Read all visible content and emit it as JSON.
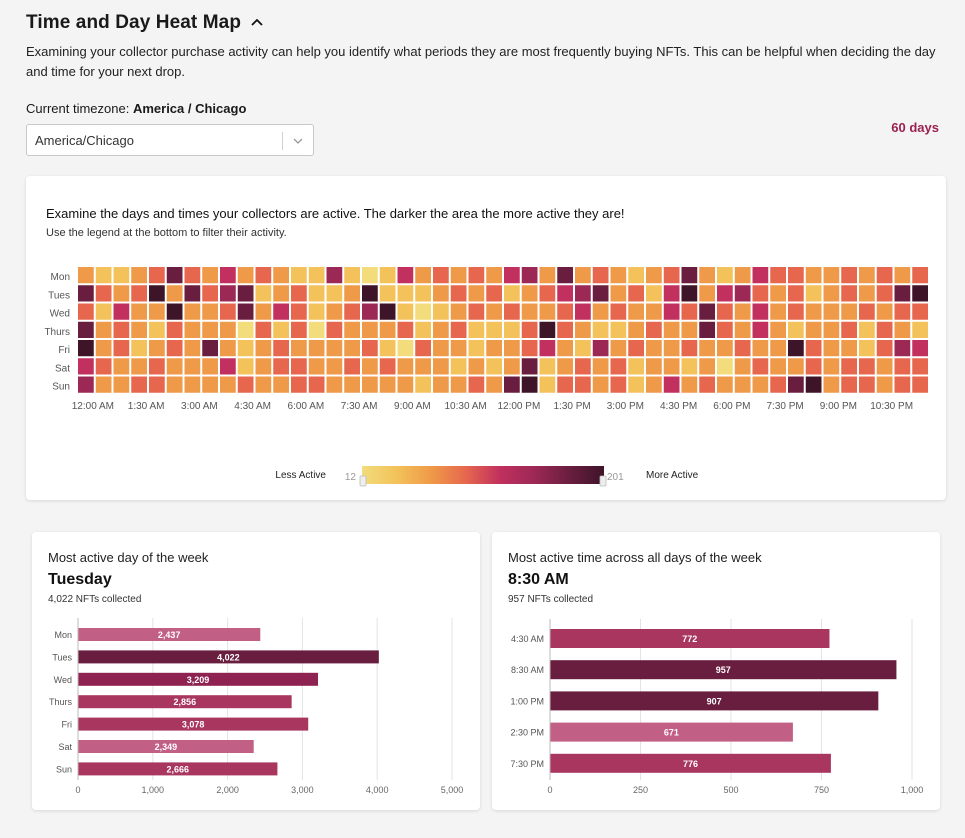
{
  "header": {
    "title": "Time and Day Heat Map",
    "description": "Examining your collector purchase activity can help you identify what periods they are most frequently buying NFTs. This can be helpful when deciding the day and time for your next drop.",
    "timezone_label": "Current timezone:",
    "timezone_value": "America / Chicago",
    "timezone_select": "America/Chicago",
    "period": "60 days",
    "collapse_icon": "chevron-up-icon"
  },
  "colors": {
    "accent": "#9b2050",
    "scale": [
      "#f2dc7c",
      "#f3c25a",
      "#ef9a48",
      "#e6674e",
      "#c1305e",
      "#9c2855",
      "#6a1e3f",
      "#3e1429"
    ]
  },
  "heatmap": {
    "title": "Examine the days and times your collectors are active. The darker the area the more active they are!",
    "subtitle": "Use the legend at the bottom to filter their activity.",
    "legend_less": "Less Active",
    "legend_more": "More Active",
    "legend_min": "12",
    "legend_max": "201"
  },
  "chart_data": [
    {
      "type": "heatmap",
      "title": "",
      "rows": [
        "Mon",
        "Tues",
        "Wed",
        "Thurs",
        "Fri",
        "Sat",
        "Sun"
      ],
      "x_tick_labels": [
        "12:00 AM",
        "1:30 AM",
        "3:00 AM",
        "4:30 AM",
        "6:00 AM",
        "7:30 AM",
        "9:00 AM",
        "10:30 AM",
        "12:00 PM",
        "1:30 PM",
        "3:00 PM",
        "4:30 PM",
        "6:00 PM",
        "7:30 PM",
        "9:00 PM",
        "10:30 PM"
      ],
      "columns": 48,
      "range": [
        12,
        201
      ],
      "levels": [
        [
          2,
          1,
          1,
          2,
          3,
          6,
          3,
          2,
          4,
          2,
          3,
          2,
          1,
          1,
          5,
          1,
          0,
          1,
          4,
          2,
          3,
          2,
          3,
          2,
          4,
          5,
          2,
          6,
          2,
          3,
          2,
          1,
          2,
          3,
          6,
          2,
          1,
          2,
          4,
          3,
          3,
          2,
          2,
          3,
          2,
          3,
          2,
          3
        ],
        [
          6,
          3,
          2,
          3,
          7,
          2,
          6,
          3,
          5,
          6,
          1,
          2,
          3,
          1,
          1,
          2,
          7,
          1,
          1,
          1,
          2,
          3,
          2,
          3,
          1,
          2,
          3,
          4,
          5,
          6,
          2,
          3,
          1,
          4,
          7,
          2,
          4,
          5,
          3,
          2,
          3,
          1,
          2,
          3,
          2,
          3,
          6,
          7
        ],
        [
          3,
          1,
          4,
          2,
          2,
          7,
          2,
          2,
          3,
          6,
          2,
          4,
          3,
          1,
          2,
          3,
          5,
          7,
          1,
          0,
          1,
          2,
          3,
          2,
          3,
          2,
          2,
          3,
          4,
          2,
          3,
          2,
          2,
          4,
          3,
          6,
          3,
          2,
          4,
          2,
          3,
          2,
          2,
          2,
          3,
          2,
          3,
          3
        ],
        [
          6,
          2,
          3,
          2,
          1,
          3,
          2,
          2,
          2,
          0,
          3,
          1,
          3,
          0,
          3,
          2,
          2,
          2,
          3,
          1,
          2,
          3,
          1,
          1,
          1,
          3,
          7,
          3,
          2,
          1,
          1,
          2,
          3,
          2,
          2,
          6,
          3,
          2,
          4,
          2,
          1,
          2,
          2,
          3,
          1,
          3,
          2,
          1
        ],
        [
          7,
          2,
          3,
          1,
          2,
          3,
          2,
          6,
          2,
          1,
          2,
          3,
          2,
          2,
          2,
          2,
          3,
          1,
          0,
          3,
          2,
          2,
          1,
          2,
          2,
          3,
          4,
          2,
          1,
          5,
          2,
          3,
          2,
          2,
          3,
          2,
          2,
          3,
          2,
          2,
          7,
          3,
          2,
          2,
          1,
          3,
          5,
          4
        ],
        [
          4,
          3,
          2,
          2,
          3,
          2,
          2,
          2,
          4,
          1,
          2,
          3,
          3,
          2,
          2,
          3,
          2,
          3,
          2,
          2,
          2,
          1,
          2,
          1,
          2,
          6,
          1,
          2,
          3,
          2,
          3,
          1,
          2,
          2,
          1,
          2,
          0,
          2,
          3,
          2,
          2,
          3,
          2,
          3,
          3,
          2,
          3,
          3
        ],
        [
          5,
          2,
          2,
          3,
          3,
          2,
          2,
          2,
          2,
          3,
          2,
          2,
          3,
          3,
          2,
          2,
          2,
          2,
          2,
          1,
          2,
          2,
          3,
          2,
          6,
          7,
          1,
          3,
          3,
          2,
          3,
          1,
          2,
          4,
          2,
          3,
          2,
          2,
          2,
          3,
          6,
          7,
          2,
          3,
          3,
          2,
          3,
          3
        ]
      ]
    },
    {
      "type": "bar",
      "title": "Most active day of the week",
      "headline": "Tuesday",
      "summary": "4,022 NFTs collected",
      "categories": [
        "Mon",
        "Tues",
        "Wed",
        "Thurs",
        "Fri",
        "Sat",
        "Sun"
      ],
      "values": [
        2437,
        4022,
        3209,
        2856,
        3078,
        2349,
        2666
      ],
      "value_labels": [
        "2,437",
        "4,022",
        "3,209",
        "2,856",
        "3,078",
        "2,349",
        "2,666"
      ],
      "x_ticks": [
        "0",
        "1,000",
        "2,000",
        "3,000",
        "4,000",
        "5,000"
      ],
      "xlim": [
        0,
        5000
      ],
      "grid": true
    },
    {
      "type": "bar",
      "title": "Most active time across all days of the week",
      "headline": "8:30 AM",
      "summary": "957 NFTs collected",
      "categories": [
        "4:30 AM",
        "8:30 AM",
        "1:00 PM",
        "2:30 PM",
        "7:30 PM"
      ],
      "values": [
        772,
        957,
        907,
        671,
        776
      ],
      "value_labels": [
        "772",
        "957",
        "907",
        "671",
        "776"
      ],
      "x_ticks": [
        "0",
        "250",
        "500",
        "750",
        "1,000"
      ],
      "xlim": [
        0,
        1000
      ],
      "grid": true
    }
  ]
}
